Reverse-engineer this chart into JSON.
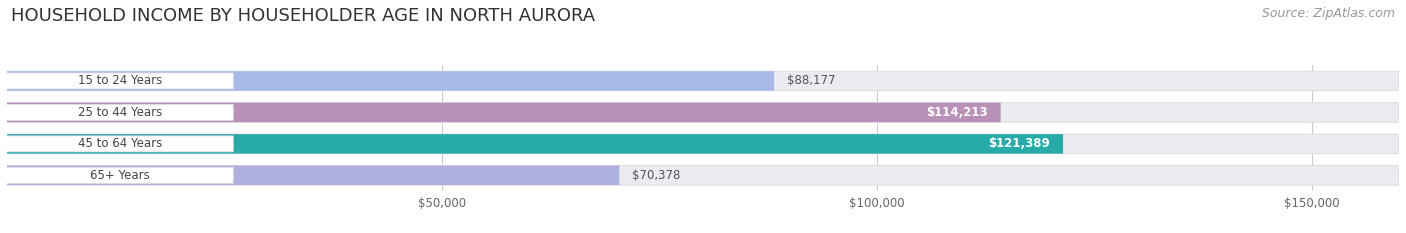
{
  "title": "HOUSEHOLD INCOME BY HOUSEHOLDER AGE IN NORTH AURORA",
  "source": "Source: ZipAtlas.com",
  "categories": [
    "15 to 24 Years",
    "25 to 44 Years",
    "45 to 64 Years",
    "65+ Years"
  ],
  "values": [
    88177,
    114213,
    121389,
    70378
  ],
  "bar_colors": [
    "#a8b8e8",
    "#b890b8",
    "#28aaa8",
    "#b0b0e0"
  ],
  "label_pill_colors": [
    "#a8b8e8",
    "#b890b8",
    "#2aaa9a",
    "#b0b0e0"
  ],
  "value_labels": [
    "$88,177",
    "$114,213",
    "$121,389",
    "$70,378"
  ],
  "value_label_inside": [
    false,
    true,
    true,
    false
  ],
  "xlim": [
    0,
    160000
  ],
  "xticks": [
    50000,
    100000,
    150000
  ],
  "xtick_labels": [
    "$50,000",
    "$100,000",
    "$150,000"
  ],
  "title_fontsize": 13,
  "source_fontsize": 9,
  "bar_height": 0.62,
  "figsize": [
    14.06,
    2.33
  ],
  "dpi": 100,
  "background_color": "#ffffff",
  "bar_bg_color": "#ebebf0",
  "bar_bg_edge": "#d8d8e0",
  "grid_color": "#cccccc"
}
